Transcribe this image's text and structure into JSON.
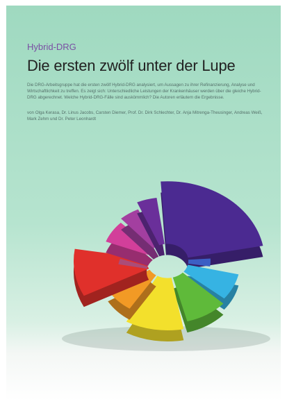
{
  "kicker": "Hybrid-DRG",
  "title": "Die ersten zwölf unter der Lupe",
  "intro": "Die DRG-Arbeitsgruppe hat die ersten zwölf Hybrid-DRG analysiert, um Aussagen zu ihrer Refinanzierung, Analyse und Wirtschaftlichkeit zu treffen. Es zeigt sich: Unterschiedliche Leistungen der Krankenhäuser werden über die gleiche Hybrid-DRG abgerechnet. Welche Hybrid-DRG-Fälle sind auskömmlich? Die Autoren erläutern die Ergebnisse.",
  "authors": "von Olga Kerasa, Dr. Linus Jacobs, Carsten Diemer, Prof. Dr. Dirk Schlechter, Dr. Anja Mitrenga-Theusinger, Andreas Weiß, Mark Zehm und Dr. Peter Leonhardt"
}
